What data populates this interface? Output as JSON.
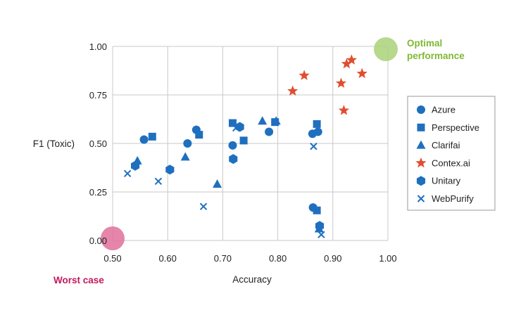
{
  "chart_data": {
    "type": "scatter",
    "xlabel": "Accuracy",
    "ylabel": "F1 (Toxic)",
    "xlim": [
      0.5,
      1.0
    ],
    "ylim": [
      0.0,
      1.0
    ],
    "xticks": [
      "0.50",
      "0.60",
      "0.70",
      "0.80",
      "0.90",
      "1.00"
    ],
    "yticks": [
      "0.00",
      "0.25",
      "0.50",
      "0.75",
      "1.00"
    ],
    "grid": true,
    "legend_position": "right",
    "annotations": {
      "optimal": {
        "line1": "Optimal",
        "line2": "performance",
        "x": 1.0,
        "y": 1.0,
        "color": "#8cc63f",
        "marker_color": "#a9d27a"
      },
      "worst": {
        "text": "Worst case",
        "x": 0.5,
        "y": 0.0,
        "color": "#c2185b",
        "marker_color": "#e0709a"
      }
    },
    "series": [
      {
        "name": "Azure",
        "marker": "circle",
        "color": "#1f6fbf",
        "points": [
          [
            0.557,
            0.52
          ],
          [
            0.636,
            0.5
          ],
          [
            0.652,
            0.57
          ],
          [
            0.718,
            0.49
          ],
          [
            0.784,
            0.56
          ],
          [
            0.863,
            0.55
          ],
          [
            0.873,
            0.56
          ],
          [
            0.864,
            0.17
          ]
        ]
      },
      {
        "name": "Perspective",
        "marker": "square",
        "color": "#1f6fbf",
        "points": [
          [
            0.572,
            0.535
          ],
          [
            0.657,
            0.545
          ],
          [
            0.718,
            0.605
          ],
          [
            0.738,
            0.515
          ],
          [
            0.795,
            0.61
          ],
          [
            0.871,
            0.6
          ],
          [
            0.871,
            0.155
          ]
        ]
      },
      {
        "name": "Clarifai",
        "marker": "triangle",
        "color": "#1f6fbf",
        "points": [
          [
            0.545,
            0.41
          ],
          [
            0.632,
            0.43
          ],
          [
            0.69,
            0.29
          ],
          [
            0.772,
            0.615
          ],
          [
            0.797,
            0.615
          ],
          [
            0.875,
            0.06
          ]
        ]
      },
      {
        "name": "Contex.ai",
        "marker": "star",
        "color": "#e04e2f",
        "points": [
          [
            0.827,
            0.77
          ],
          [
            0.848,
            0.85
          ],
          [
            0.915,
            0.81
          ],
          [
            0.92,
            0.67
          ],
          [
            0.925,
            0.91
          ],
          [
            0.934,
            0.93
          ],
          [
            0.953,
            0.86
          ]
        ]
      },
      {
        "name": "Unitary",
        "marker": "hexagon",
        "color": "#1f6fbf",
        "points": [
          [
            0.541,
            0.385
          ],
          [
            0.604,
            0.365
          ],
          [
            0.719,
            0.42
          ],
          [
            0.731,
            0.585
          ],
          [
            0.876,
            0.075
          ]
        ]
      },
      {
        "name": "WebPurify",
        "marker": "cross",
        "color": "#1f6fbf",
        "points": [
          [
            0.527,
            0.345
          ],
          [
            0.583,
            0.305
          ],
          [
            0.665,
            0.175
          ],
          [
            0.724,
            0.58
          ],
          [
            0.865,
            0.485
          ],
          [
            0.879,
            0.03
          ]
        ]
      }
    ]
  }
}
